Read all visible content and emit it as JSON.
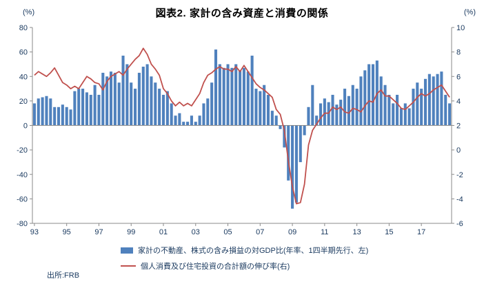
{
  "source": "出所:FRB",
  "chart_data": {
    "type": "bar+line",
    "title": "図表2. 家計の含み資産と消費の関係",
    "x_unit": "quarter",
    "x_start": "1993Q1",
    "x_end": "2018Q4",
    "x_tick_labels": [
      "93",
      "95",
      "97",
      "99",
      "01",
      "03",
      "05",
      "07",
      "09",
      "11",
      "13",
      "15",
      "17"
    ],
    "left_axis": {
      "unit": "(%)",
      "min": -80,
      "max": 80,
      "ticks": [
        80,
        60,
        40,
        20,
        0,
        -20,
        -40,
        -60,
        -80
      ]
    },
    "right_axis": {
      "unit": "(%)",
      "min": -6,
      "max": 10,
      "ticks": [
        10,
        8,
        6,
        4,
        2,
        0,
        -2,
        -4,
        -6
      ]
    },
    "legend_position": "bottom",
    "series": [
      {
        "name": "家計の不動産、株式の含み損益の対GDP比(年率、1四半期先行、左)",
        "type": "bar",
        "axis": "left",
        "color": "#4F81BD",
        "values": [
          18,
          22,
          23,
          24,
          22,
          15,
          15,
          17,
          15,
          13,
          28,
          30,
          30,
          27,
          25,
          33,
          25,
          43,
          40,
          44,
          43,
          35,
          57,
          50,
          35,
          30,
          43,
          48,
          50,
          40,
          35,
          30,
          25,
          28,
          18,
          8,
          10,
          3,
          3,
          8,
          3,
          8,
          18,
          22,
          35,
          62,
          50,
          47,
          50,
          47,
          50,
          45,
          47,
          44,
          57,
          30,
          28,
          33,
          25,
          12,
          8,
          -3,
          -18,
          -45,
          -68,
          -63,
          -30,
          -8,
          15,
          33,
          8,
          18,
          22,
          19,
          25,
          17,
          21,
          30,
          24,
          33,
          30,
          40,
          45,
          50,
          50,
          53,
          40,
          33,
          25,
          18,
          25,
          14,
          18,
          14,
          30,
          35,
          30,
          38,
          42,
          40,
          42,
          44,
          25,
          18
        ]
      },
      {
        "name": "個人消費及び住宅投資の合計額の伸び率(右)",
        "type": "line",
        "axis": "right",
        "color": "#C0504D",
        "values": [
          6.1,
          6.4,
          6.2,
          6.0,
          6.3,
          6.7,
          6.1,
          5.5,
          5.3,
          5.0,
          5.2,
          5.0,
          5.5,
          6.0,
          5.8,
          5.5,
          5.4,
          4.9,
          5.6,
          6.0,
          6.2,
          6.4,
          6.1,
          6.6,
          7.0,
          7.4,
          7.7,
          8.3,
          7.8,
          7.0,
          6.6,
          6.1,
          5.0,
          4.6,
          4.0,
          3.6,
          3.9,
          3.6,
          3.8,
          3.6,
          4.1,
          4.6,
          5.5,
          6.1,
          6.3,
          6.6,
          6.8,
          6.6,
          6.6,
          6.4,
          6.8,
          6.4,
          6.9,
          6.4,
          5.9,
          5.4,
          5.1,
          4.9,
          4.6,
          4.3,
          3.3,
          2.9,
          1.6,
          -0.9,
          -3.0,
          -4.4,
          -4.3,
          -2.8,
          0.4,
          1.6,
          2.1,
          2.6,
          3.0,
          3.0,
          3.5,
          3.3,
          3.5,
          3.1,
          3.0,
          3.4,
          3.3,
          3.1,
          3.6,
          4.0,
          3.9,
          4.6,
          4.9,
          4.4,
          4.4,
          4.1,
          3.8,
          3.4,
          3.3,
          3.6,
          3.9,
          4.3,
          4.6,
          4.4,
          4.6,
          4.9,
          5.1,
          5.3,
          4.8,
          4.3
        ]
      }
    ]
  }
}
